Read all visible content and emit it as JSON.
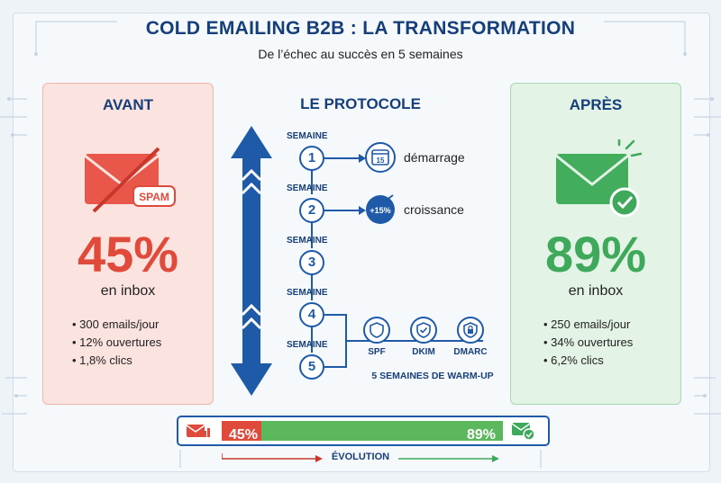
{
  "title": "COLD EMAILING B2B : LA TRANSFORMATION",
  "subtitle": "De l’échec au succès en 5 semaines",
  "before": {
    "heading": "AVANT",
    "spam_tag": "SPAM",
    "inbox_rate": "45%",
    "inbox_label": "en inbox",
    "stats": [
      "300 emails/jour",
      "12% ouvertures",
      "1,8% clics"
    ]
  },
  "after": {
    "heading": "APRÈS",
    "inbox_rate": "89%",
    "inbox_label": "en inbox",
    "stats": [
      "250 emails/jour",
      "34% ouvertures",
      "6,2% clics"
    ]
  },
  "protocol": {
    "heading": "LE PROTOCOLE",
    "week_label": "SEMAINE",
    "weeks": [
      "1",
      "2",
      "3",
      "4",
      "5"
    ],
    "week1_calendar": "15",
    "week1_text": "démarrage",
    "week2_badge": "+15%",
    "week2_text": "croissance",
    "security": [
      "SPF",
      "DKIM",
      "DMARC"
    ],
    "warmup_label": "5 SEMAINES DE WARM-UP"
  },
  "evolution": {
    "start_label": "45%",
    "end_label": "89%",
    "start_fraction": 0.45,
    "end_fraction": 0.89,
    "label": "ÉVOLUTION"
  },
  "colors": {
    "navy": "#163f7a",
    "blue": "#1e5aa8",
    "red": "#e04a3b",
    "green": "#3ea95a"
  }
}
